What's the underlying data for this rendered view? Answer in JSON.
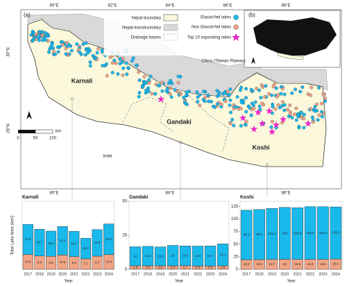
{
  "map": {
    "panel_a": "(a)",
    "panel_b": "(b)",
    "legend": [
      "Nepal boundary",
      "Nepal-transboundary",
      "Drainage basins",
      "Glacial-fed lakes",
      "Non Glacial-fed lakes",
      "Top 10 expanding lakes"
    ],
    "longitudes": [
      "80°E",
      "82°E",
      "84°E",
      "86°E",
      "88°E"
    ],
    "latitudes": [
      "30°N",
      "28°N"
    ],
    "basins": [
      "Karnali",
      "Gandaki",
      "Koshi"
    ],
    "region_labels": [
      "China (Tibetan Plateau)",
      "India"
    ],
    "scale": [
      "0",
      "50",
      "100"
    ],
    "scale_unit": "km"
  },
  "chart_data": [
    {
      "type": "bar",
      "title": "Karnali",
      "x_label": "Year",
      "y_label": "Total Lake Area (km²)",
      "categories": [
        "2017",
        "2018",
        "2019",
        "2020",
        "2021",
        "2022",
        "2023",
        "2024"
      ],
      "series": [
        {
          "color": "#f0a484",
          "values": [
            10.9,
            9.8,
            9.6,
            10.5,
            9.3,
            7.7,
            9.7,
            10.8
          ]
        },
        {
          "color": "#19b9ec",
          "values": [
            22.2,
            19.7,
            18.5,
            21,
            18.7,
            15.2,
            19.5,
            22.6
          ],
          "value_labels": [
            "22.2",
            "19.7",
            "18.5",
            "21.0",
            "18.7",
            "15.2",
            "19.5",
            "22.6"
          ]
        }
      ],
      "ylim": [
        0,
        50
      ]
    },
    {
      "type": "bar",
      "title": "Gandaki",
      "x_label": "Year",
      "categories": [
        "2017",
        "2018",
        "2019",
        "2020",
        "2021",
        "2022",
        "2023",
        "2024"
      ],
      "series": [
        {
          "color": "#f0a484",
          "values": [
            2.6,
            2.6,
            2.6,
            2.6,
            2.7,
            2.5,
            2.5,
            2.6
          ]
        },
        {
          "color": "#19b9ec",
          "values": [
            14,
            14.3,
            13.9,
            15,
            14.5,
            14.6,
            14.7,
            16.1
          ]
        }
      ],
      "ylim": [
        0,
        50
      ],
      "yticks": [
        0,
        25,
        50
      ]
    },
    {
      "type": "bar",
      "title": "Koshi",
      "x_label": "Year",
      "categories": [
        "2017",
        "2018",
        "2019",
        "2020",
        "2021",
        "2022",
        "2023",
        "2024"
      ],
      "series": [
        {
          "color": "#f0a484",
          "values": [
            19.2,
            19.3,
            19.7,
            20,
            19.6,
            19.9,
            19.9,
            20.6
          ]
        },
        {
          "color": "#19b9ec",
          "values": [
            98.1,
            99.6,
            101.3,
            103,
            102.8,
            104.6,
            104.3,
            103.3
          ]
        }
      ],
      "ylim": [
        0,
        135
      ],
      "yticks": [
        0,
        25,
        50,
        75,
        100,
        125
      ]
    }
  ]
}
